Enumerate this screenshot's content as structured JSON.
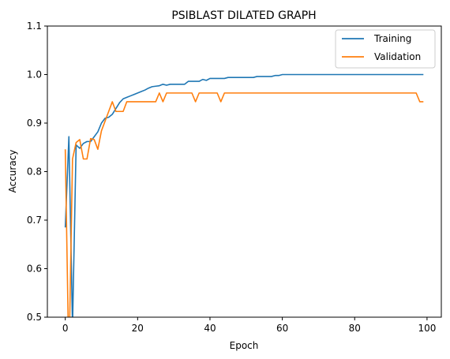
{
  "chart_data": {
    "type": "line",
    "title": "PSIBLAST DILATED GRAPH",
    "xlabel": "Epoch",
    "ylabel": "Accuracy",
    "xlim": [
      -4.95,
      103.95
    ],
    "ylim": [
      0.5,
      1.1
    ],
    "xticks": [
      0,
      20,
      40,
      60,
      80,
      100
    ],
    "yticks": [
      0.5,
      0.6,
      0.7,
      0.8,
      0.9,
      1.0,
      1.1
    ],
    "grid": false,
    "legend_position": "top-right",
    "series": [
      {
        "name": "Training",
        "color": "#1f77b4",
        "x": [
          0,
          1,
          2,
          3,
          4,
          5,
          6,
          7,
          8,
          9,
          10,
          11,
          12,
          13,
          14,
          15,
          16,
          17,
          18,
          19,
          20,
          21,
          22,
          23,
          24,
          25,
          26,
          27,
          28,
          29,
          30,
          31,
          32,
          33,
          34,
          35,
          36,
          37,
          38,
          39,
          40,
          41,
          42,
          43,
          44,
          45,
          46,
          47,
          48,
          49,
          50,
          51,
          52,
          53,
          54,
          55,
          56,
          57,
          58,
          59,
          60,
          61,
          62,
          63,
          64,
          65,
          66,
          67,
          68,
          69,
          70,
          71,
          72,
          73,
          74,
          75,
          76,
          77,
          78,
          79,
          80,
          81,
          82,
          83,
          84,
          85,
          86,
          87,
          88,
          89,
          90,
          91,
          92,
          93,
          94,
          95,
          96,
          97,
          98,
          99
        ],
        "y": [
          0.685,
          0.872,
          0.48,
          0.855,
          0.848,
          0.858,
          0.862,
          0.862,
          0.872,
          0.882,
          0.9,
          0.91,
          0.912,
          0.918,
          0.93,
          0.942,
          0.95,
          0.953,
          0.956,
          0.959,
          0.962,
          0.965,
          0.968,
          0.972,
          0.975,
          0.976,
          0.977,
          0.98,
          0.978,
          0.98,
          0.98,
          0.98,
          0.98,
          0.98,
          0.986,
          0.986,
          0.986,
          0.986,
          0.99,
          0.988,
          0.992,
          0.992,
          0.992,
          0.992,
          0.992,
          0.994,
          0.994,
          0.994,
          0.994,
          0.994,
          0.994,
          0.994,
          0.994,
          0.996,
          0.996,
          0.996,
          0.996,
          0.996,
          0.998,
          0.998,
          1.0,
          1.0,
          1.0,
          1.0,
          1.0,
          1.0,
          1.0,
          1.0,
          1.0,
          1.0,
          1.0,
          1.0,
          1.0,
          1.0,
          1.0,
          1.0,
          1.0,
          1.0,
          1.0,
          1.0,
          1.0,
          1.0,
          1.0,
          1.0,
          1.0,
          1.0,
          1.0,
          1.0,
          1.0,
          1.0,
          1.0,
          1.0,
          1.0,
          1.0,
          1.0,
          1.0,
          1.0,
          1.0,
          1.0,
          1.0
        ]
      },
      {
        "name": "Validation",
        "color": "#ff7f0e",
        "x": [
          0,
          1,
          2,
          3,
          4,
          5,
          6,
          7,
          8,
          9,
          10,
          11,
          12,
          13,
          14,
          15,
          16,
          17,
          18,
          19,
          20,
          21,
          22,
          23,
          24,
          25,
          26,
          27,
          28,
          29,
          30,
          31,
          32,
          33,
          34,
          35,
          36,
          37,
          38,
          39,
          40,
          41,
          42,
          43,
          44,
          45,
          46,
          47,
          48,
          49,
          50,
          51,
          52,
          53,
          54,
          55,
          56,
          57,
          58,
          59,
          60,
          61,
          62,
          63,
          64,
          65,
          66,
          67,
          68,
          69,
          70,
          71,
          72,
          73,
          74,
          75,
          76,
          77,
          78,
          79,
          80,
          81,
          82,
          83,
          84,
          85,
          86,
          87,
          88,
          89,
          90,
          91,
          92,
          93,
          94,
          95,
          96,
          97,
          98,
          99
        ],
        "y": [
          0.846,
          0.4,
          0.826,
          0.86,
          0.866,
          0.826,
          0.826,
          0.868,
          0.866,
          0.846,
          0.884,
          0.904,
          0.924,
          0.944,
          0.924,
          0.924,
          0.924,
          0.944,
          0.944,
          0.944,
          0.944,
          0.944,
          0.944,
          0.944,
          0.944,
          0.944,
          0.962,
          0.944,
          0.962,
          0.962,
          0.962,
          0.962,
          0.962,
          0.962,
          0.962,
          0.962,
          0.944,
          0.962,
          0.962,
          0.962,
          0.962,
          0.962,
          0.962,
          0.944,
          0.962,
          0.962,
          0.962,
          0.962,
          0.962,
          0.962,
          0.962,
          0.962,
          0.962,
          0.962,
          0.962,
          0.962,
          0.962,
          0.962,
          0.962,
          0.962,
          0.962,
          0.962,
          0.962,
          0.962,
          0.962,
          0.962,
          0.962,
          0.962,
          0.962,
          0.962,
          0.962,
          0.962,
          0.962,
          0.962,
          0.962,
          0.962,
          0.962,
          0.962,
          0.962,
          0.962,
          0.962,
          0.962,
          0.962,
          0.962,
          0.962,
          0.962,
          0.962,
          0.962,
          0.962,
          0.962,
          0.962,
          0.962,
          0.962,
          0.962,
          0.962,
          0.962,
          0.962,
          0.962,
          0.944,
          0.944
        ]
      }
    ]
  }
}
